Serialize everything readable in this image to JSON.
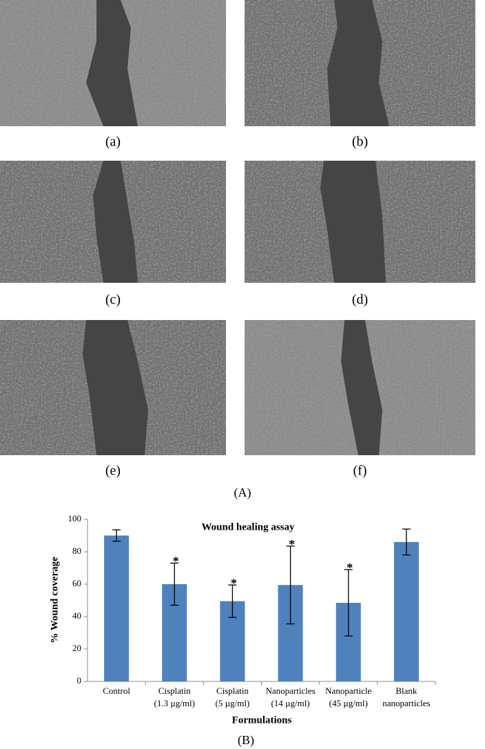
{
  "panels": [
    {
      "label": "(a)"
    },
    {
      "label": "(b)"
    },
    {
      "label": "(c)"
    },
    {
      "label": "(d)"
    },
    {
      "label": "(e)"
    },
    {
      "label": "(f)"
    }
  ],
  "figure_label_A": "(A)",
  "chart_data": {
    "type": "bar",
    "title": "Wound healing assay",
    "x_label": "Formulations",
    "y_label": "% Wound coverage",
    "categories": [
      [
        "Control"
      ],
      [
        "Cisplatin",
        "(1.3 µg/ml)"
      ],
      [
        "Cisplatin",
        "(5 µg/ml)"
      ],
      [
        "Nanoparticles",
        "(14 µg/ml)"
      ],
      [
        "Nanoparticle",
        "(45 µg/ml)"
      ],
      [
        "Blank",
        "nanoparticles"
      ]
    ],
    "values": [
      90,
      60,
      49.5,
      59.5,
      48.5,
      86
    ],
    "errors": [
      3.5,
      13,
      10,
      24,
      20.5,
      8
    ],
    "markers": [
      null,
      "*",
      "*",
      "*",
      "*",
      null
    ],
    "color": "#4f81bd",
    "ylim": [
      0,
      100
    ],
    "yticks": [
      0,
      20,
      40,
      60,
      80,
      100
    ],
    "grid": false
  },
  "figure_label_B": "(B)"
}
